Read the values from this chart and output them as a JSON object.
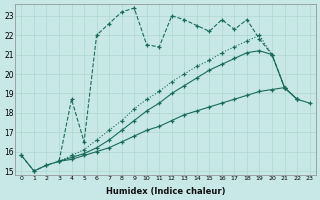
{
  "xlabel": "Humidex (Indice chaleur)",
  "background_color": "#c8e8e8",
  "grid_color": "#b0d8d0",
  "line_color": "#1a6b5a",
  "xlim": [
    -0.5,
    23.5
  ],
  "ylim": [
    14.8,
    23.6
  ],
  "yticks": [
    15,
    16,
    17,
    18,
    19,
    20,
    21,
    22,
    23
  ],
  "xticks": [
    0,
    1,
    2,
    3,
    4,
    5,
    6,
    7,
    8,
    9,
    10,
    11,
    12,
    13,
    14,
    15,
    16,
    17,
    18,
    19,
    20,
    21,
    22,
    23
  ],
  "lines": [
    {
      "x": [
        0,
        1,
        2,
        3,
        4,
        5,
        6,
        7,
        8,
        9,
        10,
        11,
        12,
        13,
        14,
        15,
        16,
        17,
        18,
        19,
        20,
        21
      ],
      "y": [
        15.8,
        15.0,
        15.3,
        15.5,
        18.7,
        16.5,
        22.0,
        22.6,
        23.2,
        23.4,
        21.5,
        21.4,
        23.0,
        22.8,
        22.5,
        22.2,
        22.8,
        22.3,
        22.8,
        21.8,
        21.0,
        19.3
      ],
      "style": "--",
      "marker": "+"
    },
    {
      "x": [
        3,
        4,
        5,
        6,
        7,
        8,
        9,
        10,
        11,
        12,
        13,
        14,
        15,
        16,
        17,
        18,
        19,
        20,
        21,
        22
      ],
      "y": [
        15.5,
        15.8,
        16.1,
        16.6,
        17.1,
        17.6,
        18.2,
        18.7,
        19.1,
        19.6,
        20.0,
        20.4,
        20.7,
        21.1,
        21.4,
        21.7,
        22.0,
        21.0,
        19.3,
        18.7
      ],
      "style": ":",
      "marker": "+"
    },
    {
      "x": [
        3,
        4,
        5,
        6,
        7,
        8,
        9,
        10,
        11,
        12,
        13,
        14,
        15,
        16,
        17,
        18,
        19,
        20,
        21,
        22
      ],
      "y": [
        15.5,
        15.7,
        15.9,
        16.2,
        16.6,
        17.1,
        17.6,
        18.1,
        18.5,
        19.0,
        19.4,
        19.8,
        20.2,
        20.5,
        20.8,
        21.1,
        21.2,
        21.0,
        19.3,
        18.7
      ],
      "style": "-",
      "marker": "+"
    },
    {
      "x": [
        0,
        1,
        2,
        3,
        4,
        5,
        6,
        7,
        8,
        9,
        10,
        11,
        12,
        13,
        14,
        15,
        16,
        17,
        18,
        19,
        20,
        21,
        22,
        23
      ],
      "y": [
        15.8,
        15.0,
        15.3,
        15.5,
        15.6,
        15.8,
        16.0,
        16.2,
        16.5,
        16.8,
        17.1,
        17.3,
        17.6,
        17.9,
        18.1,
        18.3,
        18.5,
        18.7,
        18.9,
        19.1,
        19.2,
        19.3,
        18.7,
        18.5
      ],
      "style": "-",
      "marker": "+"
    }
  ]
}
